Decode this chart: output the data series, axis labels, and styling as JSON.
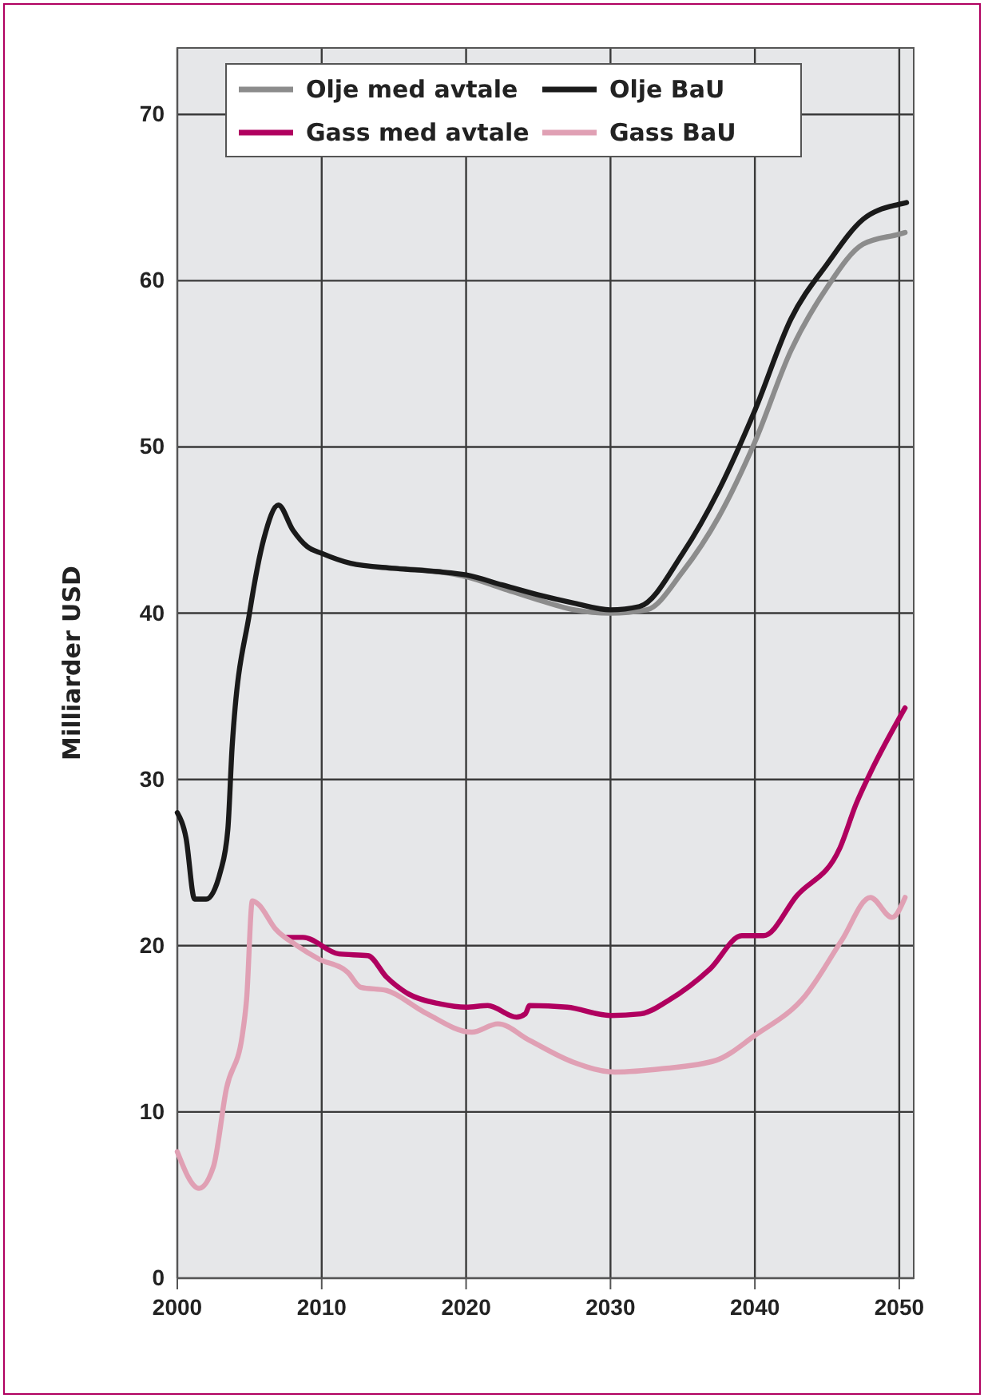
{
  "chart_data": {
    "type": "line",
    "ylabel": "Milliarder USD",
    "xlim": [
      2000,
      2051
    ],
    "ylim": [
      0,
      74
    ],
    "xticks": [
      2000,
      2010,
      2020,
      2030,
      2040,
      2050
    ],
    "yticks": [
      0,
      10,
      20,
      30,
      40,
      50,
      60,
      70
    ],
    "grid": true,
    "legend": "top",
    "line_style": "solid",
    "marker": "none",
    "series": [
      {
        "name": "Olje med avtale",
        "color": "#8c8c8c",
        "x": [
          2015,
          2018,
          2020,
          2022.5,
          2025,
          2027.5,
          2030,
          2032.5,
          2035,
          2037.5,
          2040,
          2042.5,
          2045,
          2047.5,
          2050,
          2050.4
        ],
        "values": [
          42.7,
          42.5,
          42.2,
          41.5,
          40.8,
          40.2,
          40,
          40.2,
          42.5,
          45.8,
          50.3,
          55.8,
          59.6,
          62.2,
          62.8,
          62.9
        ]
      },
      {
        "name": "Olje BaU",
        "color": "#1a1a1a",
        "x": [
          2000,
          2000.6,
          2001.2,
          2002,
          2003,
          2003.5,
          2003.8,
          2005,
          2006,
          2007,
          2008,
          2009,
          2010,
          2012,
          2015,
          2018,
          2020,
          2022.5,
          2025,
          2027.5,
          2030,
          2032,
          2035,
          2037.5,
          2040,
          2042.5,
          2045,
          2047.5,
          2050,
          2050.5
        ],
        "values": [
          28,
          26.5,
          22.8,
          22.8,
          24.5,
          27,
          32,
          40,
          44.5,
          46.5,
          45,
          44,
          43.6,
          43,
          42.7,
          42.5,
          42.3,
          41.7,
          41.1,
          40.6,
          40.2,
          40.4,
          43.6,
          47.4,
          52.2,
          57.7,
          61,
          63.7,
          64.6,
          64.7
        ]
      },
      {
        "name": "Gass med avtale",
        "color": "#b0005f",
        "x": [
          2007.6,
          2008.7,
          2011.2,
          2013.2,
          2014.5,
          2016,
          2018.2,
          2020,
          2021.5,
          2023.5,
          2024.1,
          2024.4,
          2027,
          2030,
          2032.1,
          2034,
          2036.9,
          2039.1,
          2040.6,
          2042.9,
          2045.9,
          2047,
          2048,
          2050.4
        ],
        "values": [
          20.5,
          20.5,
          19.5,
          19.4,
          18.1,
          17.1,
          16.5,
          16.3,
          16.4,
          15.7,
          15.9,
          16.4,
          16.3,
          15.8,
          15.9,
          16.7,
          18.6,
          20.6,
          20.6,
          23,
          25.9,
          28.5,
          30.4,
          34.3
        ]
      },
      {
        "name": "Gass BaU",
        "color": "#e0a0b4",
        "x": [
          2000,
          2001.5,
          2002.5,
          2003.4,
          2004.5,
          2004.8,
          2005.2,
          2005.6,
          2006.8,
          2008.3,
          2009.8,
          2011.8,
          2012.7,
          2014.5,
          2017.1,
          2020.4,
          2022.2,
          2024.4,
          2027.4,
          2030.3,
          2033.6,
          2037.3,
          2040,
          2043.5,
          2046,
          2048,
          2049.5,
          2050.4
        ],
        "values": [
          7.6,
          5.4,
          6.7,
          11.4,
          14.6,
          16.8,
          22.7,
          22.5,
          21,
          20,
          19.2,
          18.4,
          17.5,
          17.3,
          16,
          14.8,
          15.3,
          14.3,
          13,
          12.4,
          12.6,
          13.1,
          14.6,
          17,
          20.3,
          22.9,
          21.7,
          22.9
        ]
      }
    ]
  }
}
